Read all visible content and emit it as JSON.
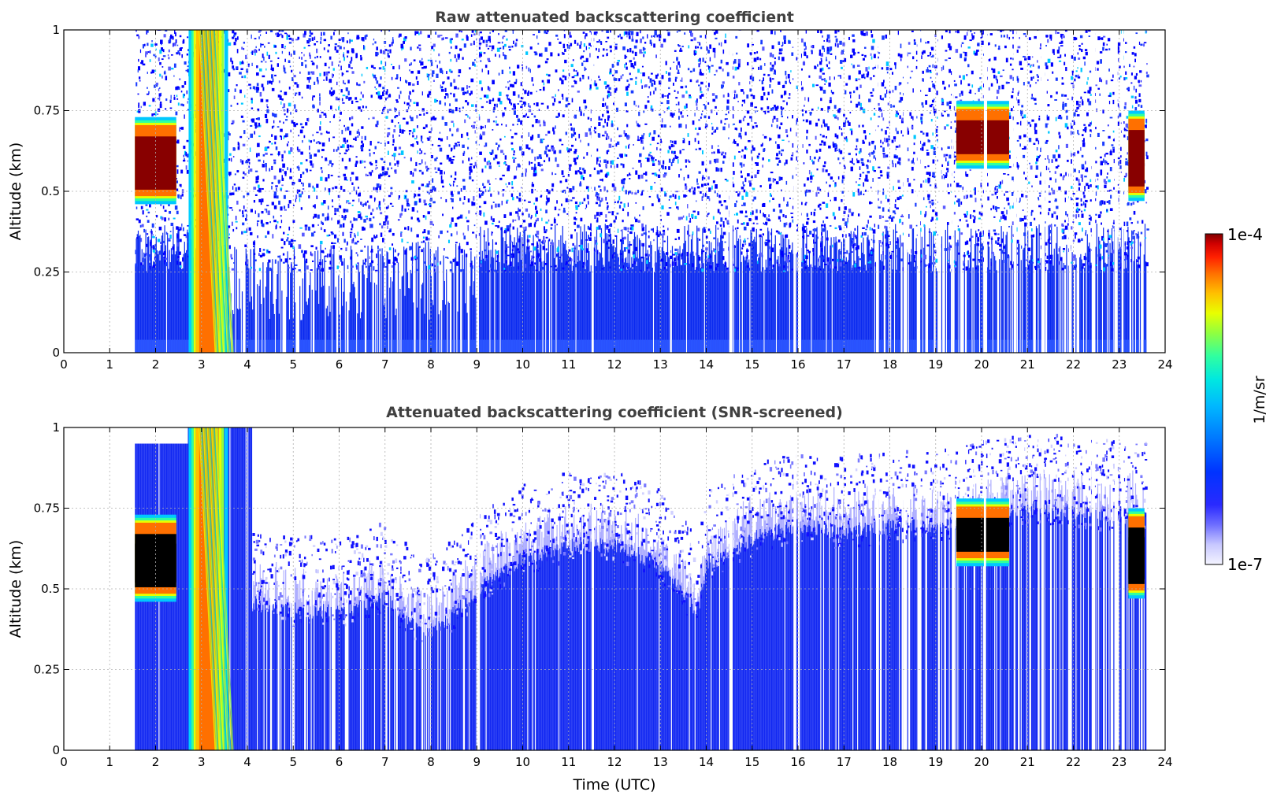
{
  "chart_data": [
    {
      "type": "heatmap",
      "title": "Raw attenuated backscattering coefficient",
      "xlabel": "",
      "ylabel": "Altitude (km)",
      "xlim": [
        0,
        24
      ],
      "ylim": [
        0,
        1
      ],
      "xticks": [
        "0",
        "1",
        "2",
        "3",
        "4",
        "5",
        "6",
        "7",
        "8",
        "9",
        "10",
        "11",
        "12",
        "13",
        "14",
        "15",
        "16",
        "17",
        "18",
        "19",
        "20",
        "21",
        "22",
        "23",
        "24"
      ],
      "yticks": [
        "0",
        "0.25",
        "0.5",
        "0.75",
        "1"
      ],
      "grid": true,
      "data_start_hour": 1.55,
      "data_end_hour": 23.6,
      "features": [
        {
          "name": "low cloud",
          "time_range": [
            1.55,
            2.45
          ],
          "altitude_range": [
            0.49,
            0.7
          ],
          "level": "1e-4"
        },
        {
          "name": "precipitation / dense layer",
          "time_range": [
            2.75,
            3.6
          ],
          "altitude_range": [
            0,
            1
          ],
          "level": "high"
        },
        {
          "name": "cloud",
          "time_range": [
            19.45,
            20.6
          ],
          "altitude_range": [
            0.6,
            0.75
          ],
          "level": "1e-4"
        },
        {
          "name": "cloud",
          "time_range": [
            23.2,
            23.55
          ],
          "altitude_range": [
            0.5,
            0.72
          ],
          "level": "1e-4"
        }
      ]
    },
    {
      "type": "heatmap",
      "title": "Attenuated backscattering coefficient (SNR-screened)",
      "xlabel": "Time (UTC)",
      "ylabel": "Altitude (km)",
      "xlim": [
        0,
        24
      ],
      "ylim": [
        0,
        1
      ],
      "xticks": [
        "0",
        "1",
        "2",
        "3",
        "4",
        "5",
        "6",
        "7",
        "8",
        "9",
        "10",
        "11",
        "12",
        "13",
        "14",
        "15",
        "16",
        "17",
        "18",
        "19",
        "20",
        "21",
        "22",
        "23",
        "24"
      ],
      "yticks": [
        "0",
        "0.25",
        "0.5",
        "0.75",
        "1"
      ],
      "grid": true,
      "boundary_layer_top_km": [
        [
          4.1,
          0.48
        ],
        [
          5.0,
          0.46
        ],
        [
          6.0,
          0.45
        ],
        [
          7.0,
          0.5
        ],
        [
          7.8,
          0.38
        ],
        [
          8.5,
          0.45
        ],
        [
          9.0,
          0.52
        ],
        [
          10.0,
          0.62
        ],
        [
          11.0,
          0.66
        ],
        [
          12.0,
          0.66
        ],
        [
          13.0,
          0.6
        ],
        [
          13.8,
          0.45
        ],
        [
          14.0,
          0.6
        ],
        [
          15.0,
          0.68
        ],
        [
          16.0,
          0.72
        ],
        [
          17.0,
          0.7
        ],
        [
          18.0,
          0.72
        ],
        [
          19.0,
          0.72
        ],
        [
          21.0,
          0.78
        ],
        [
          23.0,
          0.75
        ]
      ]
    }
  ],
  "colorbar": {
    "max_label": "1e-4",
    "min_label": "1e-7",
    "unit_label": "1/m/sr",
    "colors": [
      "#f4f4ff",
      "#c8c8ff",
      "#6e6eff",
      "#2a2aff",
      "#0033ff",
      "#0077ff",
      "#00b8ff",
      "#00e8e0",
      "#30ffa0",
      "#90ff40",
      "#e8ff00",
      "#ffc000",
      "#ff7000",
      "#ff2000",
      "#d00000",
      "#800000"
    ]
  }
}
